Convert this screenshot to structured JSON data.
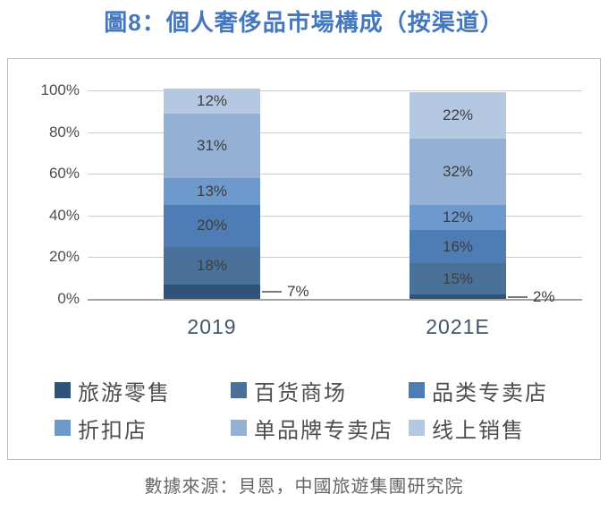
{
  "title": "圖8：個人奢侈品市場構成（按渠道）",
  "title_color": "#4577be",
  "source": "數據來源：貝恩，中國旅遊集團研究院",
  "chart_data": {
    "type": "bar",
    "subtype": "stacked-percent",
    "title": "圖8：個人奢侈品市場構成（按渠道）",
    "categories": [
      "2019",
      "2021E"
    ],
    "series": [
      {
        "name": "旅游零售",
        "color": "#2d5379",
        "values": [
          7,
          2
        ],
        "label_outside": true
      },
      {
        "name": "百货商场",
        "color": "#4a7199",
        "values": [
          18,
          15
        ],
        "label_outside": false
      },
      {
        "name": "品类专卖店",
        "color": "#4d7db4",
        "values": [
          20,
          16
        ],
        "label_outside": false
      },
      {
        "name": "折扣店",
        "color": "#6e99cc",
        "values": [
          13,
          12
        ],
        "label_outside": false
      },
      {
        "name": "单品牌专卖店",
        "color": "#94b1d5",
        "values": [
          31,
          32
        ],
        "label_outside": false
      },
      {
        "name": "线上销售",
        "color": "#b4c8e2",
        "values": [
          12,
          22
        ],
        "label_outside": false
      }
    ],
    "yticks": [
      "0%",
      "20%",
      "40%",
      "60%",
      "80%",
      "100%"
    ],
    "ylim": [
      0,
      100
    ],
    "grid": true,
    "legend_position": "bottom",
    "outside_labels": [
      "7%",
      "2%"
    ]
  }
}
